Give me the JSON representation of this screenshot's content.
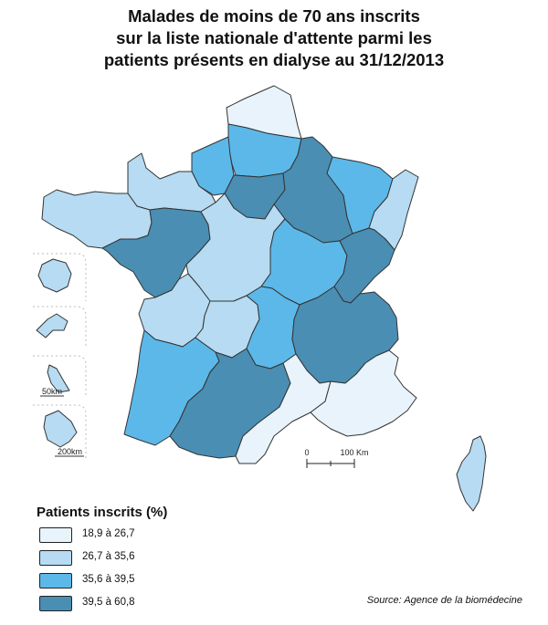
{
  "title_lines": [
    "Malades de moins de 70 ans inscrits",
    "sur la liste nationale d'attente parmi les",
    "patients présents en dialyse au 31/12/2013"
  ],
  "legend": {
    "title": "Patients inscrits (%)",
    "classes": [
      {
        "label": "18,9 à 26,7",
        "color": "#e8f3fb"
      },
      {
        "label": "26,7 à 35,6",
        "color": "#b6dbf2"
      },
      {
        "label": "35,6 à 39,5",
        "color": "#5cb8e8"
      },
      {
        "label": "39,5 à 60,8",
        "color": "#4a8eb3"
      }
    ]
  },
  "scale_bar": {
    "start": "0",
    "end": "100 Km"
  },
  "inset_scales": [
    "50km",
    "200km"
  ],
  "source": "Source: Agence de la biomédecine",
  "regions": [
    {
      "id": "nord-pas-de-calais",
      "class": 0
    },
    {
      "id": "picardie",
      "class": 2
    },
    {
      "id": "haute-normandie",
      "class": 2
    },
    {
      "id": "basse-normandie",
      "class": 1
    },
    {
      "id": "ile-de-france",
      "class": 3
    },
    {
      "id": "champagne-ardenne",
      "class": 3
    },
    {
      "id": "lorraine",
      "class": 2
    },
    {
      "id": "alsace",
      "class": 1
    },
    {
      "id": "bretagne",
      "class": 1
    },
    {
      "id": "pays-de-la-loire",
      "class": 3
    },
    {
      "id": "centre",
      "class": 1
    },
    {
      "id": "bourgogne",
      "class": 2
    },
    {
      "id": "franche-comte",
      "class": 3
    },
    {
      "id": "poitou-charentes",
      "class": 1
    },
    {
      "id": "limousin",
      "class": 1
    },
    {
      "id": "auvergne",
      "class": 2
    },
    {
      "id": "rhone-alpes",
      "class": 3
    },
    {
      "id": "aquitaine",
      "class": 2
    },
    {
      "id": "midi-pyrenees",
      "class": 3
    },
    {
      "id": "languedoc-roussillon",
      "class": 0
    },
    {
      "id": "provence-alpes-cote-d-azur",
      "class": 0
    },
    {
      "id": "corse",
      "class": 1
    },
    {
      "id": "la-reunion",
      "class": 1
    },
    {
      "id": "guadeloupe",
      "class": 1
    },
    {
      "id": "martinique",
      "class": 1
    },
    {
      "id": "guyane",
      "class": 1
    }
  ]
}
